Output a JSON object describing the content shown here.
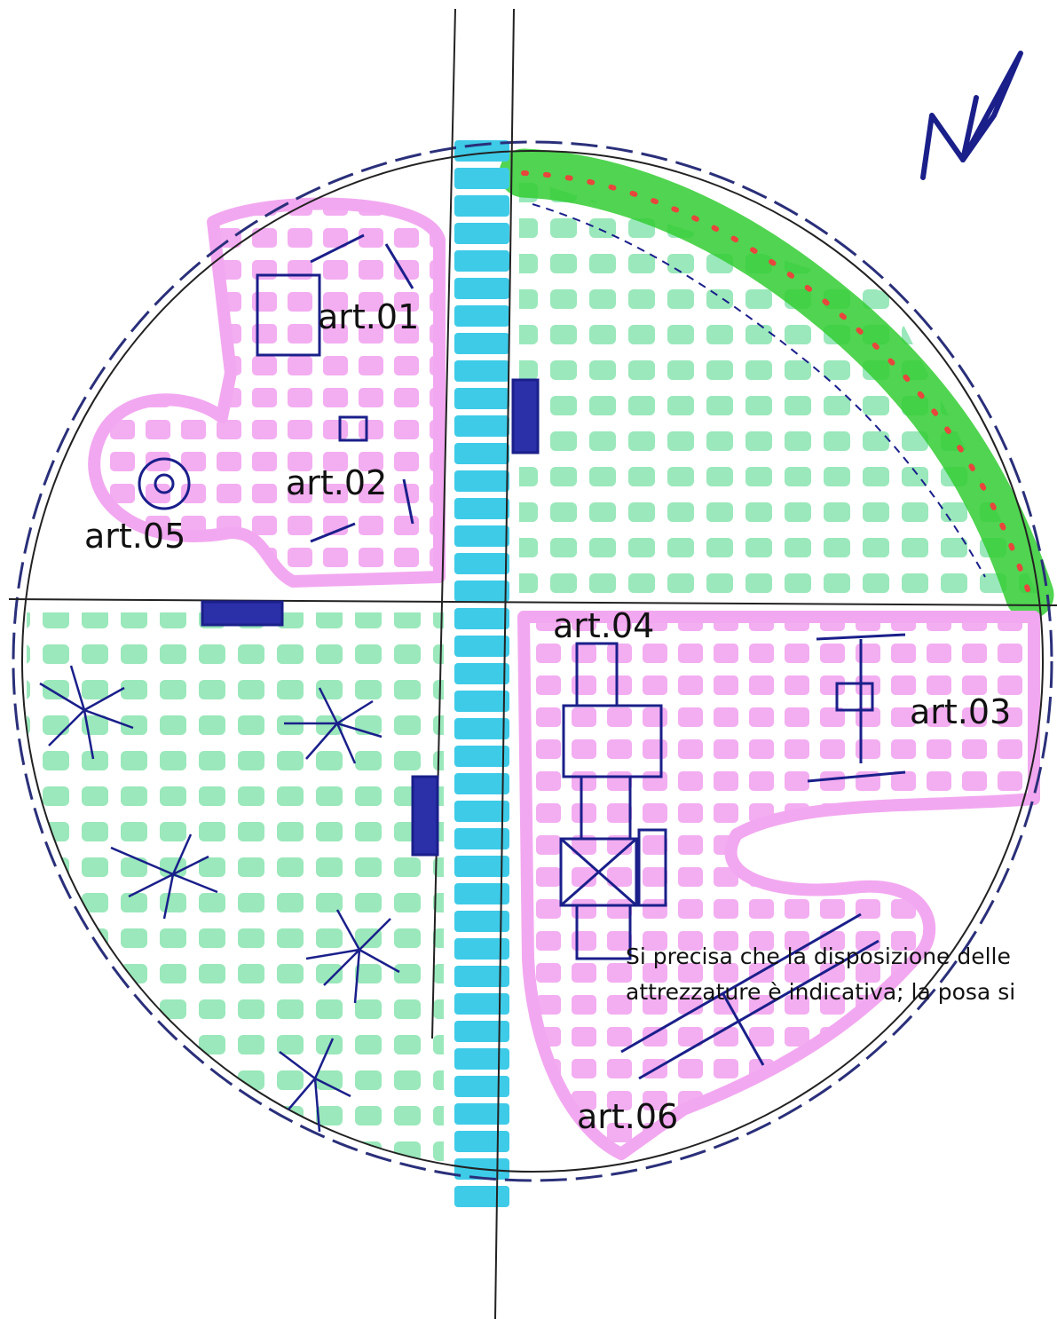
{
  "diagram": {
    "labels": {
      "art01": "art.01",
      "art02": "art.02",
      "art03": "art.03",
      "art04": "art.04",
      "art05": "art.05",
      "art06": "art.06"
    },
    "note": {
      "line1": "Si precisa che la disposizione delle",
      "line2": "attrezzature è indicativa;  la posa si"
    },
    "colors": {
      "path": "#3ecbe8",
      "lawn": "#8fe6b4",
      "paving": "#f2a8f0",
      "hedge": "#33cc33",
      "hedge_dots": "#e8463c",
      "ink": "#1a1f8a",
      "fence": "#2a2f7a"
    },
    "icons": [
      "north-arrow-icon",
      "tree-icon",
      "bench-icon",
      "play-equipment-icon"
    ]
  }
}
